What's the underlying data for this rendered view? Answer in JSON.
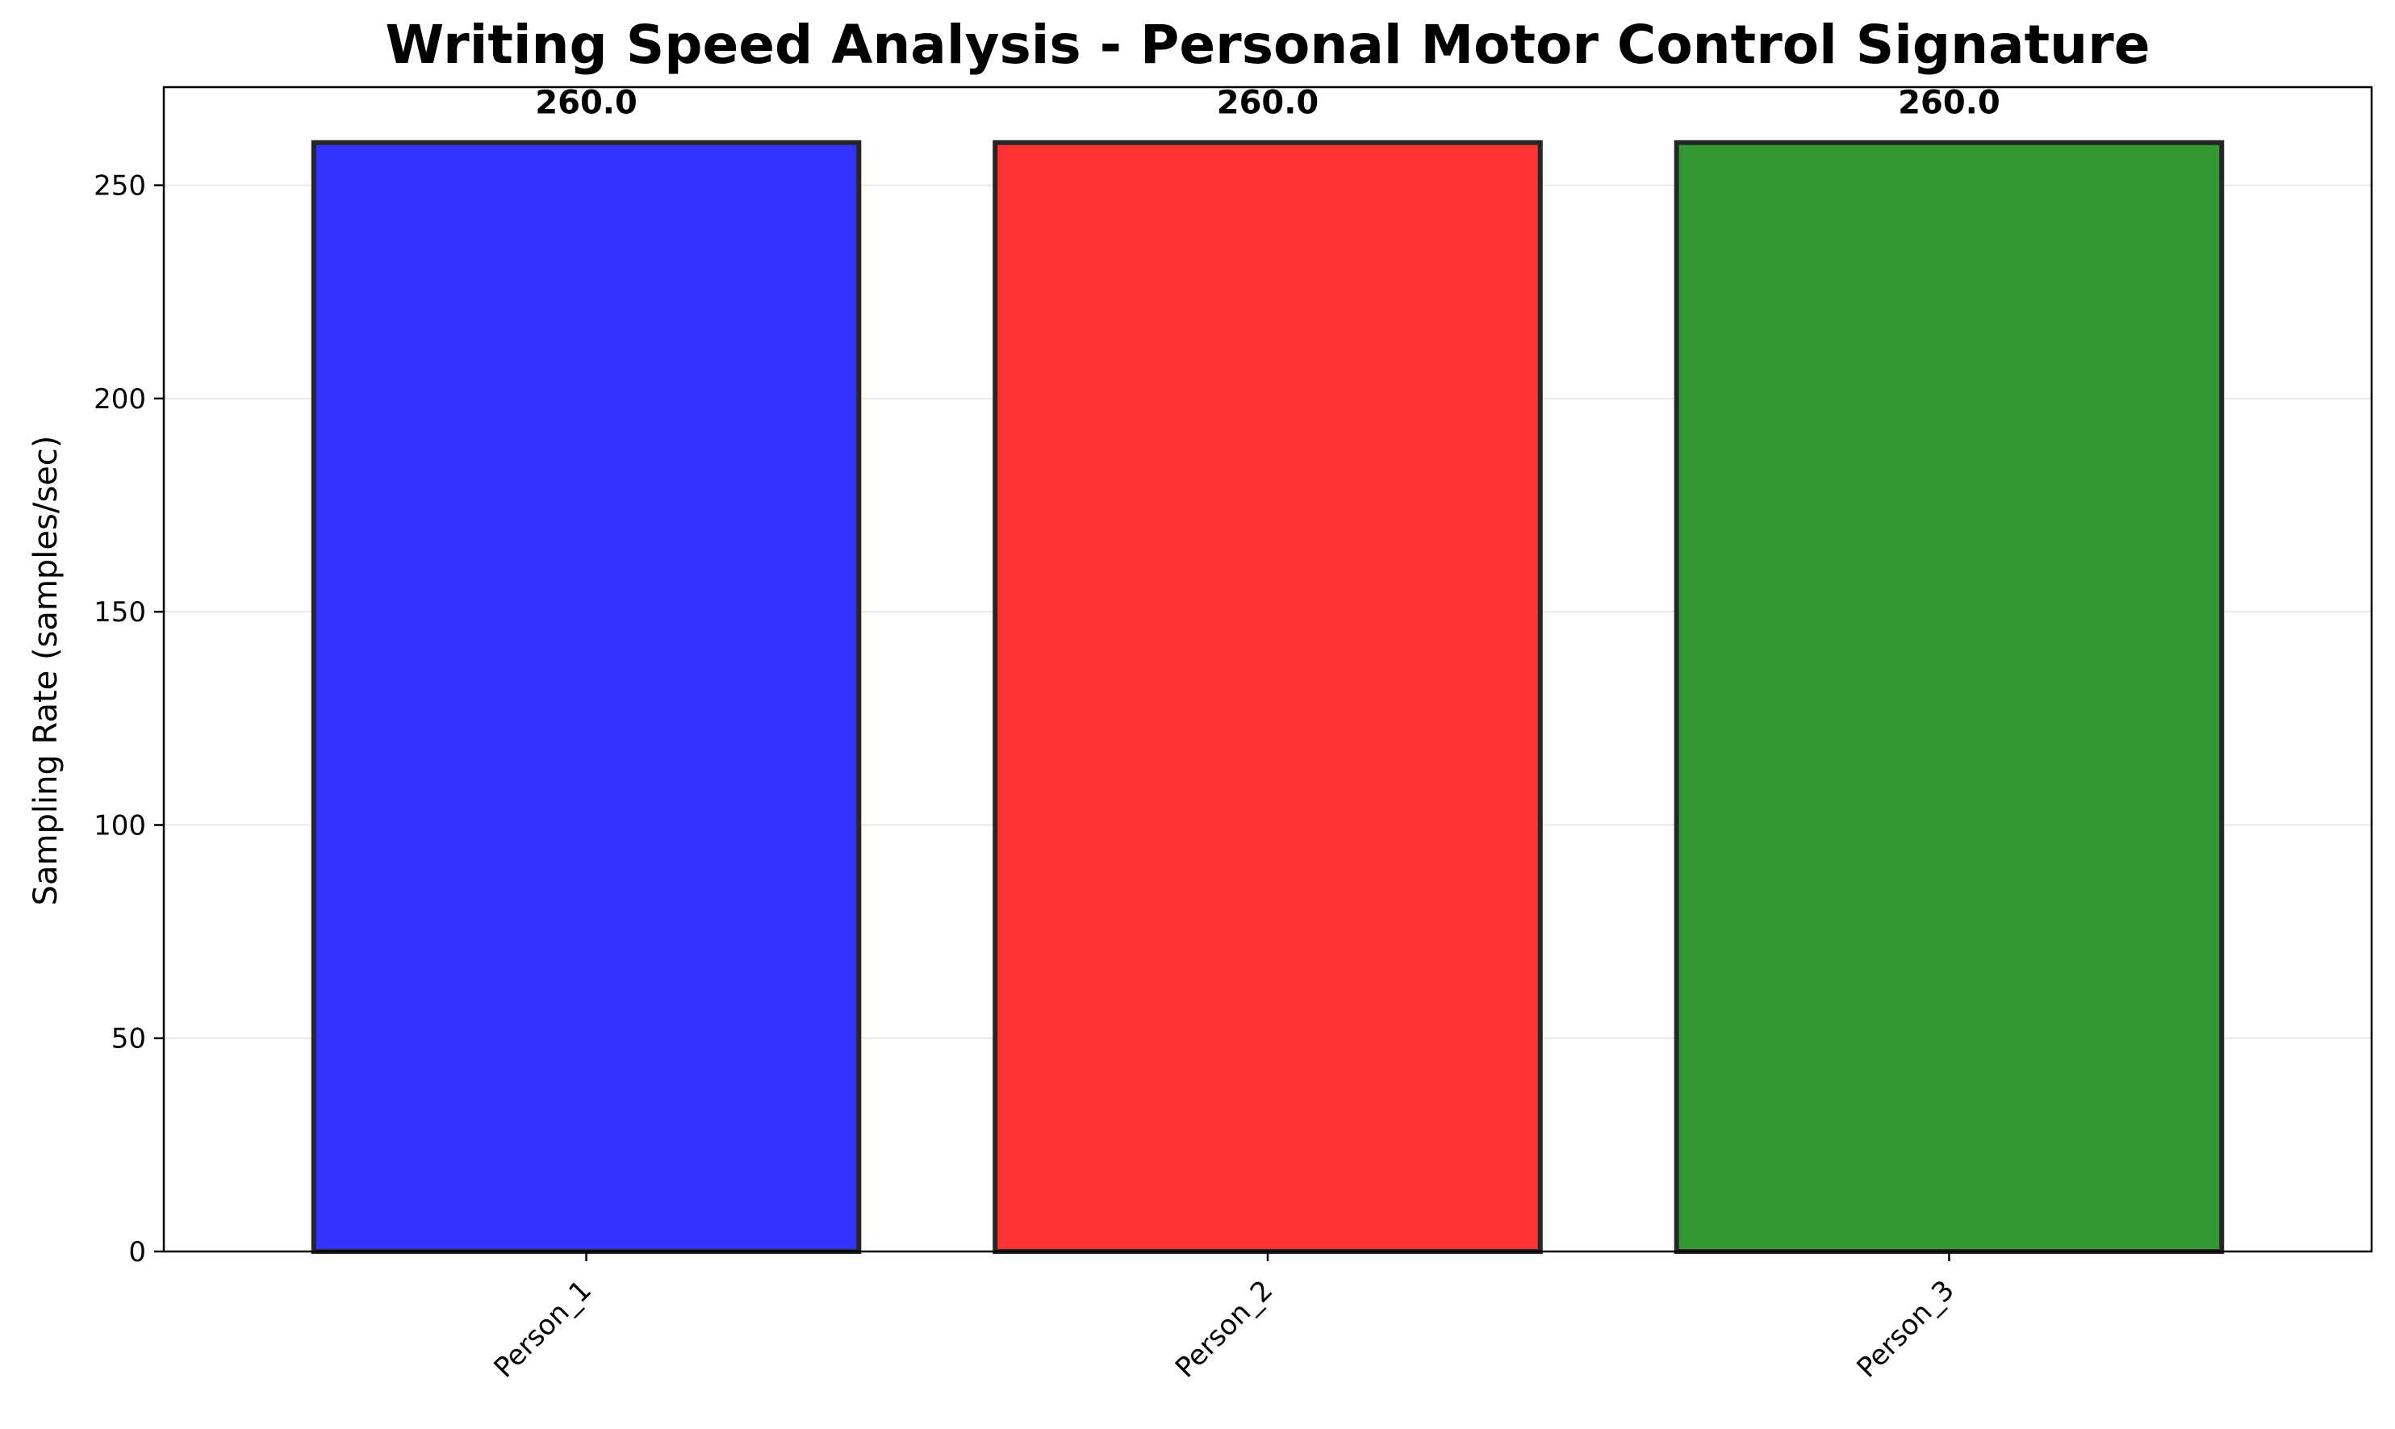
{
  "chart_data": {
    "type": "bar",
    "title": "Writing Speed Analysis - Personal Motor Control Signature",
    "xlabel": "",
    "ylabel": "Sampling Rate (samples/sec)",
    "categories": [
      "Person_1",
      "Person_2",
      "Person_3"
    ],
    "values": [
      260.0,
      260.0,
      260.0
    ],
    "value_labels": [
      "260.0",
      "260.0",
      "260.0"
    ],
    "bar_colors": [
      "#3333ff",
      "#ff3333",
      "#339933"
    ],
    "bar_edge_color": "#262626",
    "ylim": [
      0,
      273
    ],
    "yticks": [
      0,
      50,
      100,
      150,
      200,
      250
    ],
    "xtick_rotation": 45,
    "grid": {
      "y": true,
      "x": false
    },
    "legend": "none"
  }
}
